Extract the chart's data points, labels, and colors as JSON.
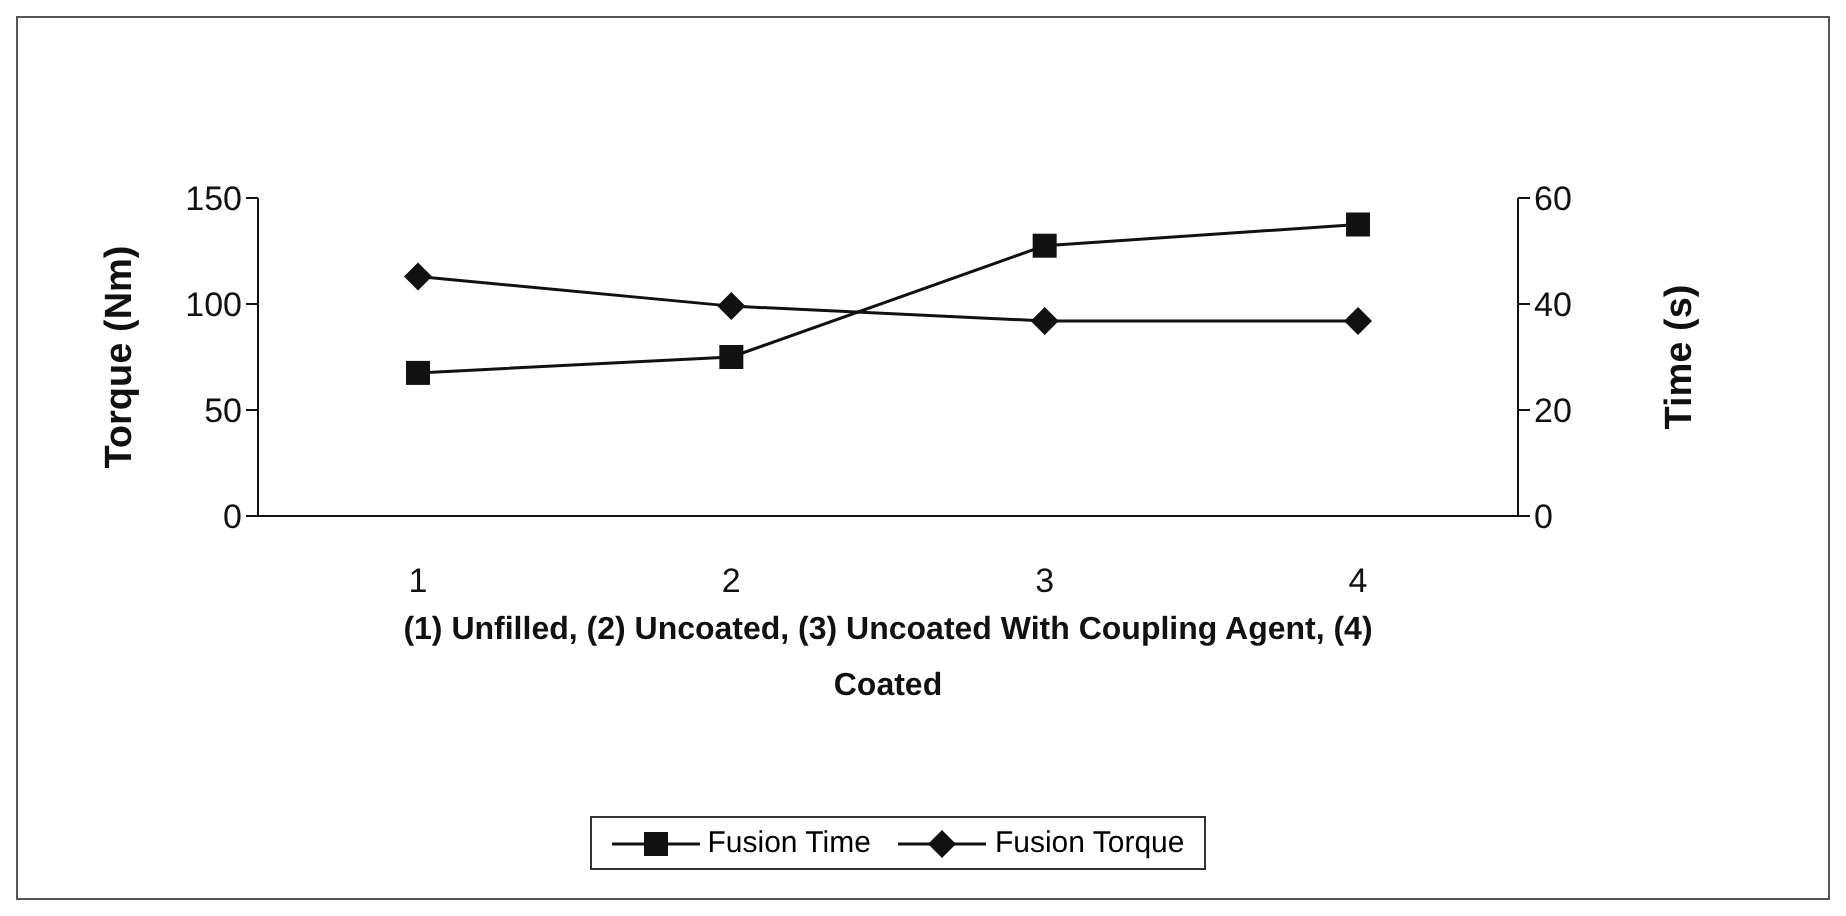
{
  "chart_data": {
    "type": "line",
    "categories": [
      "1",
      "2",
      "3",
      "4"
    ],
    "xlabel": "(1) Unfilled, (2) Uncoated, (3) Uncoated With Coupling Agent, (4) Coated",
    "ylabel": "Torque (Nm)",
    "y2label": "Time (s)",
    "ylim": [
      0,
      150
    ],
    "yticks": [
      0,
      50,
      100,
      150
    ],
    "y2lim": [
      0,
      60
    ],
    "y2ticks": [
      0,
      20,
      40,
      60
    ],
    "series": [
      {
        "name": "Fusion Time",
        "color": "#111111",
        "axis": "y2",
        "marker": "square",
        "values": [
          27,
          30,
          51,
          55
        ]
      },
      {
        "name": "Fusion Torque",
        "color": "#111111",
        "axis": "y",
        "marker": "diamond",
        "values": [
          113,
          99,
          92,
          92
        ]
      }
    ],
    "legend": "bottom"
  }
}
